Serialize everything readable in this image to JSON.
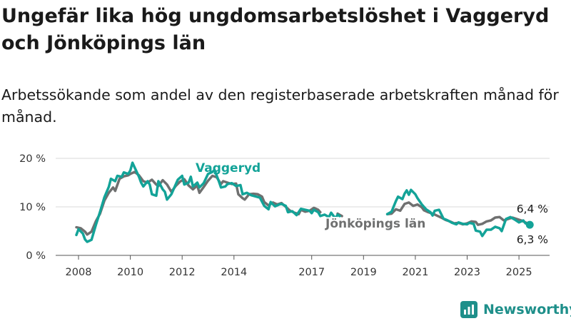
{
  "title": "Ungefär lika hög ungdomsarbetslöshet i Vaggeryd och Jönköpings län",
  "subtitle": "Arbetssökande som andel av den registerbaserade arbetskraften månad för månad.",
  "brand": {
    "name": "Newsworthy",
    "icon": "newsworthy-logo-icon",
    "color": "#1e8f8a"
  },
  "chart_data": {
    "type": "line",
    "x_ticks": [
      "2008",
      "2010",
      "2012",
      "2014",
      "2017",
      "2019",
      "2021",
      "2023",
      "2025"
    ],
    "y_ticks": [
      "0 %",
      "10 %",
      "20 %"
    ],
    "ylim": [
      0,
      20
    ],
    "grid": true,
    "series": [
      {
        "name": "Vaggeryd",
        "color": "#13a398",
        "end_label": "6,3 %",
        "points": [
          [
            "2007-12",
            4.2
          ],
          [
            "2008-01",
            5.4
          ],
          [
            "2008-03",
            4.5
          ],
          [
            "2008-04",
            3.3
          ],
          [
            "2008-05",
            2.8
          ],
          [
            "2008-07",
            3.2
          ],
          [
            "2008-09",
            6.2
          ],
          [
            "2008-11",
            9.0
          ],
          [
            "2009-01",
            12.0
          ],
          [
            "2009-03",
            14.1
          ],
          [
            "2009-04",
            15.8
          ],
          [
            "2009-06",
            15.3
          ],
          [
            "2009-07",
            16.4
          ],
          [
            "2009-09",
            16.2
          ],
          [
            "2009-10",
            17.1
          ],
          [
            "2009-12",
            16.8
          ],
          [
            "2010-01",
            17.5
          ],
          [
            "2010-02",
            19.1
          ],
          [
            "2010-03",
            18.1
          ],
          [
            "2010-05",
            16.2
          ],
          [
            "2010-06",
            15.0
          ],
          [
            "2010-07",
            14.2
          ],
          [
            "2010-09",
            15.3
          ],
          [
            "2010-10",
            14.6
          ],
          [
            "2010-11",
            12.6
          ],
          [
            "2011-01",
            12.3
          ],
          [
            "2011-02",
            15.3
          ],
          [
            "2011-04",
            13.6
          ],
          [
            "2011-05",
            13.1
          ],
          [
            "2011-06",
            11.5
          ],
          [
            "2011-08",
            12.6
          ],
          [
            "2011-09",
            13.6
          ],
          [
            "2011-11",
            15.6
          ],
          [
            "2012-01",
            16.4
          ],
          [
            "2012-02",
            14.6
          ],
          [
            "2012-04",
            15.0
          ],
          [
            "2012-05",
            16.2
          ],
          [
            "2012-06",
            14.2
          ],
          [
            "2012-08",
            15.0
          ],
          [
            "2012-09",
            14.0
          ],
          [
            "2012-11",
            14.9
          ],
          [
            "2013-01",
            16.8
          ],
          [
            "2013-03",
            17.2
          ],
          [
            "2013-04",
            17.6
          ],
          [
            "2013-06",
            15.3
          ],
          [
            "2013-07",
            14.0
          ],
          [
            "2013-09",
            14.2
          ],
          [
            "2013-10",
            14.7
          ],
          [
            "2013-12",
            14.9
          ],
          [
            "2014-02",
            14.3
          ],
          [
            "2014-04",
            14.5
          ],
          [
            "2014-05",
            12.6
          ],
          [
            "2014-07",
            12.9
          ],
          [
            "2014-09",
            12.4
          ],
          [
            "2015-01",
            11.9
          ],
          [
            "2015-03",
            10.2
          ],
          [
            "2015-05",
            9.5
          ],
          [
            "2015-06",
            11.0
          ],
          [
            "2015-08",
            10.1
          ],
          [
            "2015-10",
            10.5
          ],
          [
            "2015-11",
            10.6
          ],
          [
            "2016-01",
            10.2
          ],
          [
            "2016-02",
            8.9
          ],
          [
            "2016-04",
            9.1
          ],
          [
            "2016-06",
            8.3
          ],
          [
            "2016-08",
            9.6
          ],
          [
            "2016-10",
            9.4
          ],
          [
            "2016-12",
            9.2
          ],
          [
            "2017-01",
            8.7
          ],
          [
            "2017-02",
            9.4
          ],
          [
            "2017-04",
            8.9
          ],
          [
            "2017-05",
            8.1
          ],
          [
            "2017-07",
            8.4
          ],
          [
            "2017-09",
            7.9
          ],
          [
            "2017-10",
            8.8
          ],
          [
            "2017-12",
            7.6
          ],
          [
            "2018-01",
            8.4
          ],
          [
            "2018-02",
            8.1
          ],
          null,
          [
            "2019-12",
            8.5
          ],
          [
            "2020-02",
            9.0
          ],
          [
            "2020-04",
            11.2
          ],
          [
            "2020-05",
            12.1
          ],
          [
            "2020-07",
            11.6
          ],
          [
            "2020-08",
            12.7
          ],
          [
            "2020-09",
            13.4
          ],
          [
            "2020-10",
            12.5
          ],
          [
            "2020-11",
            13.5
          ],
          [
            "2021-01",
            12.6
          ],
          [
            "2021-02",
            11.8
          ],
          [
            "2021-04",
            10.5
          ],
          [
            "2021-06",
            9.5
          ],
          [
            "2021-08",
            8.9
          ],
          [
            "2021-09",
            8.2
          ],
          [
            "2021-10",
            9.2
          ],
          [
            "2021-12",
            9.4
          ],
          [
            "2022-02",
            7.6
          ],
          [
            "2022-04",
            7.2
          ],
          [
            "2022-06",
            6.7
          ],
          [
            "2022-08",
            6.4
          ],
          [
            "2022-09",
            6.8
          ],
          [
            "2022-11",
            6.5
          ],
          [
            "2023-01",
            6.4
          ],
          [
            "2023-02",
            6.7
          ],
          [
            "2023-04",
            6.5
          ],
          [
            "2023-05",
            5.1
          ],
          [
            "2023-07",
            4.9
          ],
          [
            "2023-08",
            4.0
          ],
          [
            "2023-10",
            5.3
          ],
          [
            "2023-12",
            5.3
          ],
          [
            "2024-02",
            5.9
          ],
          [
            "2024-04",
            5.6
          ],
          [
            "2024-05",
            5.0
          ],
          [
            "2024-07",
            7.5
          ],
          [
            "2024-09",
            7.9
          ],
          [
            "2024-11",
            7.4
          ],
          [
            "2025-01",
            6.8
          ],
          [
            "2025-03",
            7.2
          ],
          [
            "2025-04",
            6.6
          ],
          [
            "2025-06",
            6.3
          ]
        ]
      },
      {
        "name": "Jönköpings län",
        "color": "#6f7070",
        "end_label": "6,4 %",
        "points": [
          [
            "2007-12",
            5.8
          ],
          [
            "2008-02",
            5.6
          ],
          [
            "2008-04",
            4.9
          ],
          [
            "2008-05",
            4.3
          ],
          [
            "2008-07",
            4.9
          ],
          [
            "2008-09",
            7.0
          ],
          [
            "2008-11",
            8.6
          ],
          [
            "2009-01",
            11.3
          ],
          [
            "2009-03",
            12.9
          ],
          [
            "2009-05",
            14.0
          ],
          [
            "2009-06",
            13.3
          ],
          [
            "2009-08",
            15.8
          ],
          [
            "2009-10",
            16.3
          ],
          [
            "2009-12",
            16.5
          ],
          [
            "2010-01",
            16.8
          ],
          [
            "2010-03",
            17.2
          ],
          [
            "2010-05",
            16.5
          ],
          [
            "2010-07",
            15.3
          ],
          [
            "2010-09",
            15.0
          ],
          [
            "2010-11",
            15.6
          ],
          [
            "2011-01",
            14.6
          ],
          [
            "2011-02",
            14.3
          ],
          [
            "2011-04",
            15.5
          ],
          [
            "2011-06",
            14.6
          ],
          [
            "2011-08",
            13.1
          ],
          [
            "2011-10",
            14.3
          ],
          [
            "2011-12",
            15.2
          ],
          [
            "2012-02",
            15.7
          ],
          [
            "2012-04",
            14.4
          ],
          [
            "2012-06",
            13.6
          ],
          [
            "2012-08",
            14.4
          ],
          [
            "2012-09",
            12.9
          ],
          [
            "2012-11",
            14.1
          ],
          [
            "2013-01",
            15.4
          ],
          [
            "2013-03",
            16.4
          ],
          [
            "2013-05",
            16.1
          ],
          [
            "2013-07",
            14.7
          ],
          [
            "2013-08",
            15.3
          ],
          [
            "2013-10",
            15.0
          ],
          [
            "2013-12",
            14.7
          ],
          [
            "2014-02",
            14.8
          ],
          [
            "2014-03",
            12.6
          ],
          [
            "2014-05",
            11.8
          ],
          [
            "2014-06",
            11.5
          ],
          [
            "2014-08",
            12.6
          ],
          [
            "2014-10",
            12.7
          ],
          [
            "2014-12",
            12.6
          ],
          [
            "2015-02",
            12.1
          ],
          [
            "2015-03",
            11.0
          ],
          [
            "2015-05",
            10.3
          ],
          [
            "2015-07",
            10.9
          ],
          [
            "2015-09",
            10.5
          ],
          [
            "2015-11",
            10.8
          ],
          [
            "2016-01",
            10.0
          ],
          [
            "2016-03",
            9.2
          ],
          [
            "2016-05",
            8.8
          ],
          [
            "2016-07",
            8.5
          ],
          [
            "2016-08",
            9.4
          ],
          [
            "2016-10",
            9.0
          ],
          [
            "2016-12",
            9.2
          ],
          [
            "2017-02",
            9.8
          ],
          [
            "2017-04",
            9.4
          ],
          [
            "2017-05",
            8.9
          ],
          null,
          [
            "2018-01",
            8.6
          ],
          [
            "2018-03",
            8.1
          ],
          null,
          [
            "2019-12",
            8.5
          ],
          [
            "2020-02",
            8.6
          ],
          [
            "2020-04",
            9.5
          ],
          [
            "2020-06",
            9.2
          ],
          [
            "2020-08",
            10.6
          ],
          [
            "2020-10",
            10.9
          ],
          [
            "2020-12",
            10.2
          ],
          [
            "2021-02",
            10.5
          ],
          [
            "2021-04",
            9.9
          ],
          [
            "2021-05",
            9.3
          ],
          [
            "2021-07",
            8.9
          ],
          [
            "2021-09",
            8.6
          ],
          [
            "2021-11",
            8.2
          ],
          [
            "2022-01",
            7.8
          ],
          [
            "2022-03",
            7.3
          ],
          [
            "2022-05",
            7.0
          ],
          [
            "2022-07",
            6.6
          ],
          [
            "2022-09",
            6.7
          ],
          [
            "2022-11",
            6.4
          ],
          [
            "2023-01",
            6.6
          ],
          [
            "2023-03",
            7.0
          ],
          [
            "2023-05",
            6.9
          ],
          [
            "2023-06",
            6.3
          ],
          [
            "2023-08",
            6.5
          ],
          [
            "2023-10",
            7.0
          ],
          [
            "2023-12",
            7.2
          ],
          [
            "2024-02",
            7.8
          ],
          [
            "2024-04",
            7.9
          ],
          [
            "2024-06",
            7.2
          ],
          [
            "2024-08",
            7.5
          ],
          [
            "2024-10",
            7.8
          ],
          [
            "2024-12",
            7.5
          ],
          [
            "2025-02",
            7.2
          ],
          [
            "2025-04",
            6.8
          ],
          [
            "2025-06",
            6.4
          ]
        ]
      }
    ]
  }
}
